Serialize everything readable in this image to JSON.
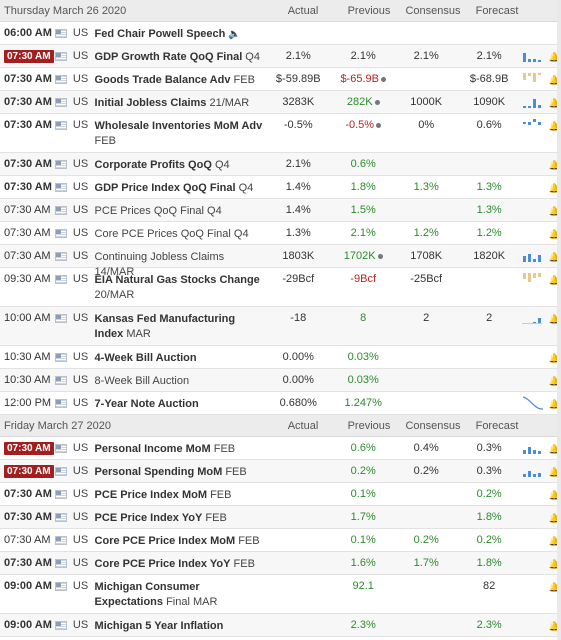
{
  "columns": {
    "actual": "Actual",
    "previous": "Previous",
    "consensus": "Consensus",
    "forecast": "Forecast"
  },
  "days": [
    {
      "date": "Thursday March 26 2020",
      "events": [
        {
          "time": "06:00 AM",
          "time_bold": true,
          "badge": false,
          "country": "US",
          "name": "Fed Chair Powell Speech",
          "suffix": "",
          "speaker": true,
          "actual": "",
          "previous": "",
          "consensus": "",
          "forecast": "",
          "chart": null,
          "bell": false
        },
        {
          "time": "07:30 AM",
          "time_bold": true,
          "badge": true,
          "country": "US",
          "name": "GDP Growth Rate QoQ Final",
          "suffix": "Q4",
          "actual": "2.1%",
          "previous": "2.1%",
          "consensus": "2.1%",
          "forecast": "2.1%",
          "chart": {
            "color": "#4a8fd4",
            "vals": [
              9,
              3,
              3,
              2
            ]
          },
          "bell": true
        },
        {
          "time": "07:30 AM",
          "time_bold": true,
          "badge": false,
          "country": "US",
          "name": "Goods Trade Balance Adv",
          "suffix": "FEB",
          "actual": "$-59.89B",
          "previous": "$-65.9B",
          "prev_rev": true,
          "prev_class": "red",
          "consensus": "",
          "forecast": "$-68.9B",
          "chart": {
            "color": "#e8c88e",
            "vals": [
              -7,
              -3,
              -9,
              -2
            ],
            "neg": true
          },
          "bell": true
        },
        {
          "time": "07:30 AM",
          "time_bold": true,
          "badge": false,
          "country": "US",
          "name": "Initial Jobless Claims",
          "suffix": "21/MAR",
          "actual": "3283K",
          "previous": "282K",
          "prev_rev": true,
          "prev_class": "grn",
          "consensus": "1000K",
          "forecast": "1090K",
          "chart": {
            "color": "#4a8fd4",
            "vals": [
              2,
              2,
              9,
              3
            ]
          },
          "bell": true
        },
        {
          "time": "07:30 AM",
          "time_bold": true,
          "badge": false,
          "country": "US",
          "name": "Wholesale Inventories MoM Adv",
          "suffix": "FEB",
          "tall": true,
          "actual": "-0.5%",
          "previous": "-0.5%",
          "prev_rev": true,
          "prev_class": "red",
          "consensus": "0%",
          "forecast": "0.6%",
          "chart": {
            "color": "#4a8fd4",
            "vals": [
              -2,
              -3,
              3,
              -3
            ],
            "mixed": true
          },
          "bell": true
        },
        {
          "time": "07:30 AM",
          "time_bold": true,
          "badge": false,
          "country": "US",
          "name": "Corporate Profits QoQ",
          "suffix": "Q4",
          "actual": "2.1%",
          "previous": "0.6%",
          "prev_class": "grn",
          "consensus": "",
          "forecast": "",
          "chart": null,
          "bell": true
        },
        {
          "time": "07:30 AM",
          "time_bold": true,
          "badge": false,
          "country": "US",
          "name": "GDP Price Index QoQ Final",
          "suffix": "Q4",
          "actual": "1.4%",
          "previous": "1.8%",
          "prev_class": "grn",
          "consensus": "1.3%",
          "cons_class": "grn",
          "forecast": "1.3%",
          "fore_class": "grn",
          "chart": null,
          "bell": true
        },
        {
          "time": "07:30 AM",
          "time_bold": false,
          "badge": false,
          "country": "US",
          "name": "PCE Prices QoQ Final",
          "suffix": "Q4",
          "plain": true,
          "actual": "1.4%",
          "previous": "1.5%",
          "prev_class": "grn",
          "consensus": "",
          "forecast": "1.3%",
          "fore_class": "grn",
          "chart": null,
          "bell": true
        },
        {
          "time": "07:30 AM",
          "time_bold": false,
          "badge": false,
          "country": "US",
          "name": "Core PCE Prices QoQ Final",
          "suffix": "Q4",
          "plain": true,
          "actual": "1.3%",
          "previous": "2.1%",
          "prev_class": "grn",
          "consensus": "1.2%",
          "cons_class": "grn",
          "forecast": "1.2%",
          "fore_class": "grn",
          "chart": null,
          "bell": true
        },
        {
          "time": "07:30 AM",
          "time_bold": false,
          "badge": false,
          "country": "US",
          "name": "Continuing Jobless Claims",
          "suffix": "14/MAR",
          "plain": true,
          "actual": "1803K",
          "previous": "1702K",
          "prev_rev": true,
          "prev_class": "grn",
          "consensus": "1708K",
          "forecast": "1820K",
          "chart": {
            "color": "#4a8fd4",
            "vals": [
              6,
              8,
              3,
              7
            ]
          },
          "bell": true
        },
        {
          "time": "09:30 AM",
          "time_bold": false,
          "badge": false,
          "country": "US",
          "name": "EIA Natural Gas Stocks Change",
          "suffix": "20/MAR",
          "tall": true,
          "actual": "-29Bcf",
          "previous": "-9Bcf",
          "prev_class": "red",
          "consensus": "-25Bcf",
          "forecast": "",
          "chart": {
            "color": "#e8c88e",
            "vals": [
              -6,
              -9,
              -5,
              -4
            ],
            "neg": true
          },
          "bell": true
        },
        {
          "time": "10:00 AM",
          "time_bold": false,
          "badge": false,
          "country": "US",
          "name": "Kansas Fed Manufacturing Index",
          "suffix": "MAR",
          "tall": true,
          "actual": "-18",
          "previous": "8",
          "prev_class": "grn",
          "consensus": "2",
          "forecast": "2",
          "chart": {
            "color": "#4a8fd4",
            "vals": [
              1,
              1,
              2,
              6
            ],
            "bottomline": true
          },
          "bell": true
        },
        {
          "time": "10:30 AM",
          "time_bold": false,
          "badge": false,
          "country": "US",
          "name": "4-Week Bill Auction",
          "suffix": "",
          "actual": "0.00%",
          "previous": "0.03%",
          "prev_class": "grn",
          "consensus": "",
          "forecast": "",
          "chart": null,
          "bell": true
        },
        {
          "time": "10:30 AM",
          "time_bold": false,
          "badge": false,
          "country": "US",
          "name": "8-Week Bill Auction",
          "suffix": "",
          "plain": true,
          "actual": "0.00%",
          "previous": "0.03%",
          "prev_class": "grn",
          "consensus": "",
          "forecast": "",
          "chart": null,
          "bell": true
        },
        {
          "time": "12:00 PM",
          "time_bold": false,
          "badge": false,
          "country": "US",
          "name": "7-Year Note Auction",
          "suffix": "",
          "actual": "0.680%",
          "previous": "1.247%",
          "prev_class": "grn",
          "consensus": "",
          "forecast": "",
          "chart": {
            "line": true,
            "color": "#4a8fd4"
          },
          "bell": true
        }
      ]
    },
    {
      "date": "Friday March 27 2020",
      "events": [
        {
          "time": "07:30 AM",
          "time_bold": true,
          "badge": true,
          "country": "US",
          "name": "Personal Income MoM",
          "suffix": "FEB",
          "actual": "",
          "previous": "0.6%",
          "prev_class": "grn",
          "consensus": "0.4%",
          "forecast": "0.3%",
          "chart": {
            "color": "#4a8fd4",
            "vals": [
              4,
              7,
              4,
              3
            ]
          },
          "bell": true
        },
        {
          "time": "07:30 AM",
          "time_bold": true,
          "badge": true,
          "country": "US",
          "name": "Personal Spending MoM",
          "suffix": "FEB",
          "actual": "",
          "previous": "0.2%",
          "prev_class": "grn",
          "consensus": "0.2%",
          "forecast": "0.3%",
          "chart": {
            "color": "#4a8fd4",
            "vals": [
              3,
              6,
              3,
              4
            ]
          },
          "bell": true
        },
        {
          "time": "07:30 AM",
          "time_bold": true,
          "badge": false,
          "country": "US",
          "name": "PCE Price Index MoM",
          "suffix": "FEB",
          "actual": "",
          "previous": "0.1%",
          "prev_class": "grn",
          "consensus": "",
          "forecast": "0.2%",
          "fore_class": "grn",
          "chart": null,
          "bell": true
        },
        {
          "time": "07:30 AM",
          "time_bold": true,
          "badge": false,
          "country": "US",
          "name": "PCE Price Index YoY",
          "suffix": "FEB",
          "actual": "",
          "previous": "1.7%",
          "prev_class": "grn",
          "consensus": "",
          "forecast": "1.8%",
          "fore_class": "grn",
          "chart": null,
          "bell": true
        },
        {
          "time": "07:30 AM",
          "time_bold": false,
          "badge": false,
          "country": "US",
          "name": "Core PCE Price Index MoM",
          "suffix": "FEB",
          "actual": "",
          "previous": "0.1%",
          "prev_class": "grn",
          "consensus": "0.2%",
          "cons_class": "grn",
          "forecast": "0.2%",
          "fore_class": "grn",
          "chart": null,
          "bell": true
        },
        {
          "time": "07:30 AM",
          "time_bold": true,
          "badge": false,
          "country": "US",
          "name": "Core PCE Price Index YoY",
          "suffix": "FEB",
          "actual": "",
          "previous": "1.6%",
          "prev_class": "grn",
          "consensus": "1.7%",
          "cons_class": "grn",
          "forecast": "1.8%",
          "fore_class": "grn",
          "chart": null,
          "bell": true
        },
        {
          "time": "09:00 AM",
          "time_bold": true,
          "badge": false,
          "country": "US",
          "name": "Michigan Consumer Expectations",
          "suffix": "Final MAR",
          "tall": true,
          "actual": "",
          "previous": "92.1",
          "prev_class": "grn",
          "consensus": "",
          "forecast": "82",
          "chart": null,
          "bell": true
        },
        {
          "time": "09:00 AM",
          "time_bold": true,
          "badge": false,
          "country": "US",
          "name": "Michigan 5 Year Inflation",
          "suffix": "",
          "actual": "",
          "previous": "2.3%",
          "prev_class": "grn",
          "consensus": "",
          "forecast": "2.3%",
          "fore_class": "grn",
          "chart": null,
          "bell": true
        }
      ]
    }
  ]
}
